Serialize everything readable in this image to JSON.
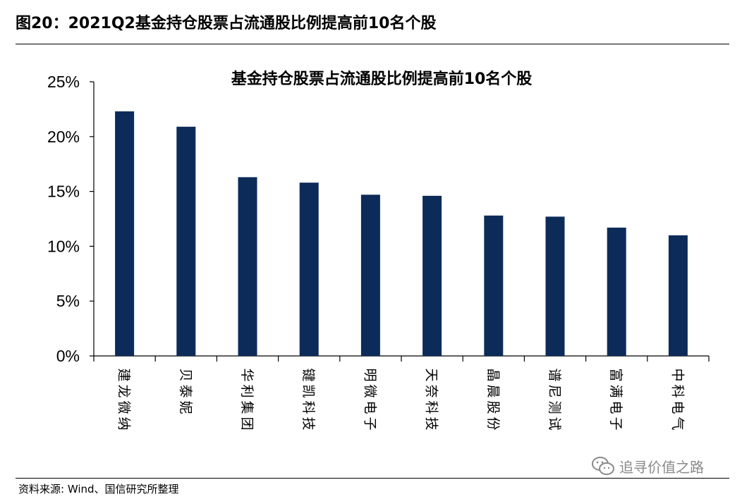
{
  "figure": {
    "header": "图20：2021Q2基金持仓股票占流通股比例提高前10名个股",
    "source": "资料来源: Wind、国信研究所整理",
    "watermark": "追寻价值之路",
    "watermark_icon": "wechat-icon"
  },
  "chart_data": {
    "type": "bar",
    "title": "基金持仓股票占流通股比例提高前10名个股",
    "xlabel": "",
    "ylabel": "",
    "categories": [
      "建龙微纳",
      "贝泰妮",
      "华利集团",
      "键凯科技",
      "明微电子",
      "天奈科技",
      "晶晨股份",
      "谱尼测试",
      "富满电子",
      "中科电气"
    ],
    "values": [
      22.3,
      20.9,
      16.3,
      15.8,
      14.7,
      14.6,
      12.8,
      12.7,
      11.7,
      11.0
    ],
    "ylim": [
      0,
      25
    ],
    "yticks": [
      "0%",
      "5%",
      "10%",
      "15%",
      "20%",
      "25%"
    ],
    "grid": false,
    "legend": "none",
    "bar_color": "#0D2B59"
  }
}
